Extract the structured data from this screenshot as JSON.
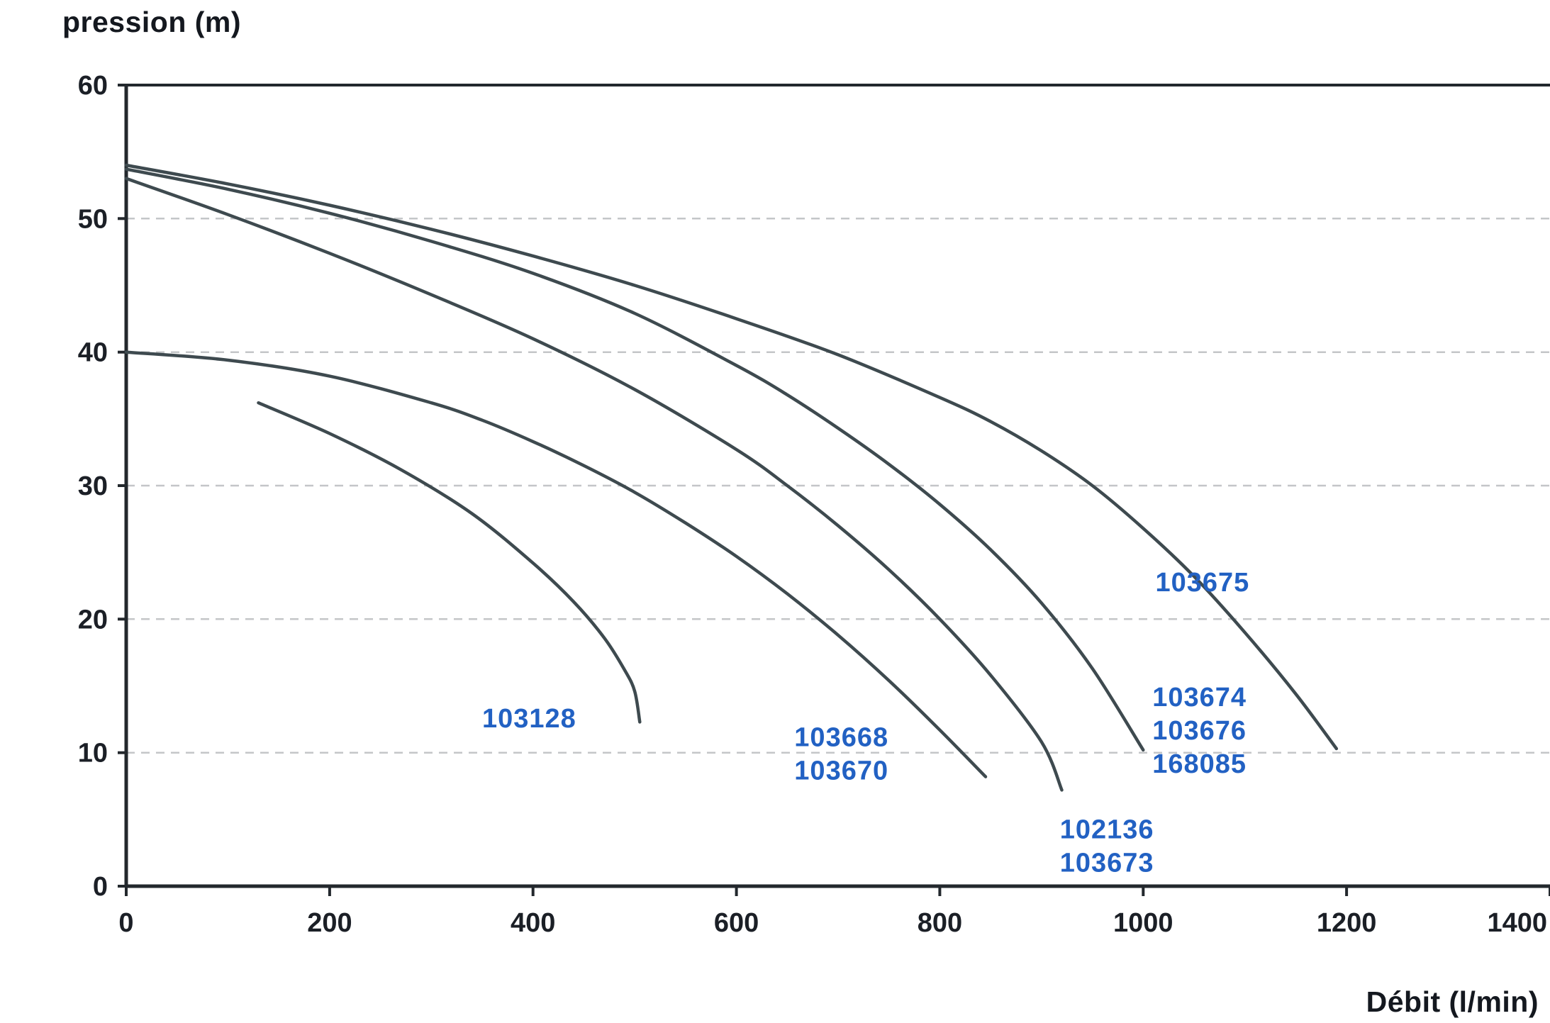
{
  "chart_data": {
    "type": "line",
    "title": "",
    "ylabel": "pression (m)",
    "xlabel": "Débit (l/min)",
    "xlim": [
      0,
      1400
    ],
    "ylim": [
      0,
      60
    ],
    "x_ticks": [
      "0",
      "200",
      "400",
      "600",
      "800",
      "1000",
      "1200",
      "1400"
    ],
    "x_tick_values": [
      0,
      200,
      400,
      600,
      800,
      1000,
      1200,
      1400
    ],
    "y_ticks": [
      "0",
      "10",
      "20",
      "30",
      "40",
      "50",
      "60"
    ],
    "y_tick_values": [
      0,
      10,
      20,
      30,
      40,
      50,
      60
    ],
    "grid": {
      "horizontal": true,
      "style": "dashed",
      "at": [
        10,
        20,
        30,
        40,
        50
      ]
    },
    "legend_position": "inline-labels",
    "colors": {
      "curve": "#3e4a4f",
      "label": "#2261c3",
      "axis": "#23282d",
      "axis_text": "#1b1f26",
      "grid": "#c4c6c8",
      "background": "#ffffff"
    },
    "series": [
      {
        "models": [
          "103675"
        ],
        "label_lines": [
          "103675"
        ],
        "label_anchor": {
          "x": 1012,
          "y": 23.9
        },
        "points": [
          [
            0,
            54
          ],
          [
            100,
            52.6
          ],
          [
            200,
            51
          ],
          [
            300,
            49.2
          ],
          [
            400,
            47.2
          ],
          [
            500,
            45
          ],
          [
            600,
            42.5
          ],
          [
            700,
            39.8
          ],
          [
            800,
            36.6
          ],
          [
            850,
            34.8
          ],
          [
            900,
            32.6
          ],
          [
            950,
            30
          ],
          [
            1000,
            26.8
          ],
          [
            1050,
            23.2
          ],
          [
            1100,
            19
          ],
          [
            1150,
            14.4
          ],
          [
            1190,
            10.3
          ]
        ]
      },
      {
        "models": [
          "103674",
          "103676",
          "168085"
        ],
        "label_lines": [
          "103674",
          "103676",
          "168085"
        ],
        "label_anchor": {
          "x": 1009,
          "y": 15.3
        },
        "points": [
          [
            0,
            53.7
          ],
          [
            100,
            52.2
          ],
          [
            200,
            50.4
          ],
          [
            300,
            48.3
          ],
          [
            400,
            45.9
          ],
          [
            500,
            42.9
          ],
          [
            600,
            39
          ],
          [
            650,
            36.8
          ],
          [
            700,
            34.3
          ],
          [
            750,
            31.6
          ],
          [
            800,
            28.6
          ],
          [
            850,
            25.2
          ],
          [
            900,
            21.2
          ],
          [
            950,
            16.3
          ],
          [
            1000,
            10.2
          ]
        ]
      },
      {
        "models": [
          "102136",
          "103673"
        ],
        "label_lines": [
          "102136",
          "103673"
        ],
        "label_anchor": {
          "x": 918,
          "y": 5.4
        },
        "points": [
          [
            0,
            53
          ],
          [
            100,
            50.3
          ],
          [
            200,
            47.4
          ],
          [
            300,
            44.3
          ],
          [
            400,
            41
          ],
          [
            500,
            37.2
          ],
          [
            600,
            32.7
          ],
          [
            650,
            30
          ],
          [
            700,
            27
          ],
          [
            750,
            23.7
          ],
          [
            800,
            20
          ],
          [
            850,
            15.8
          ],
          [
            900,
            10.8
          ],
          [
            920,
            7.2
          ]
        ]
      },
      {
        "models": [
          "103668",
          "103670"
        ],
        "label_lines": [
          "103668",
          "103670"
        ],
        "label_anchor": {
          "x": 657,
          "y": 12.3
        },
        "points": [
          [
            0,
            40
          ],
          [
            100,
            39.4
          ],
          [
            200,
            38.2
          ],
          [
            300,
            36.2
          ],
          [
            350,
            34.9
          ],
          [
            400,
            33.3
          ],
          [
            450,
            31.5
          ],
          [
            500,
            29.5
          ],
          [
            550,
            27.2
          ],
          [
            600,
            24.7
          ],
          [
            650,
            21.9
          ],
          [
            700,
            18.8
          ],
          [
            750,
            15.4
          ],
          [
            800,
            11.7
          ],
          [
            845,
            8.2
          ]
        ]
      },
      {
        "models": [
          "103128"
        ],
        "label_lines": [
          "103128"
        ],
        "label_anchor": {
          "x": 350,
          "y": 13.7
        },
        "points": [
          [
            130,
            36.2
          ],
          [
            200,
            33.9
          ],
          [
            270,
            31.2
          ],
          [
            340,
            27.9
          ],
          [
            400,
            24.2
          ],
          [
            440,
            21.3
          ],
          [
            470,
            18.6
          ],
          [
            490,
            16.2
          ],
          [
            500,
            14.6
          ],
          [
            505,
            12.3
          ]
        ]
      }
    ]
  }
}
